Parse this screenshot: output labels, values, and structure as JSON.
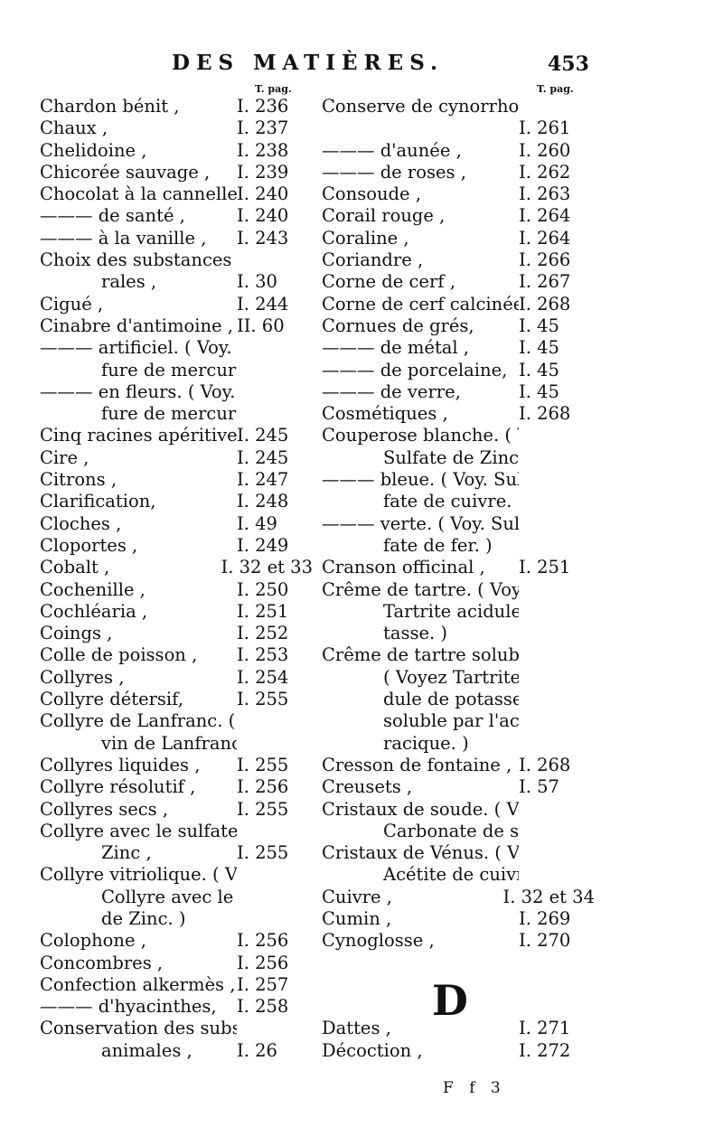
{
  "header": {
    "title": "DES MATIÈRES.",
    "page_number": "453"
  },
  "column_head": "T. pag.",
  "left_column": [
    {
      "text": "Chardon bénit ,",
      "ref": "I. 236"
    },
    {
      "text": "Chaux ,",
      "ref": "I. 237"
    },
    {
      "text": "Chelidoine ,",
      "ref": "I. 238"
    },
    {
      "text": "Chicorée sauvage ,",
      "ref": "I. 239"
    },
    {
      "text": "Chocolat à la cannelle,",
      "ref": "I. 240"
    },
    {
      "text": "——— de santé ,",
      "ref": "I. 240"
    },
    {
      "text": "——— à la vanille ,",
      "ref": "I. 243"
    },
    {
      "text": "Choix des substances miné-",
      "ref": ""
    },
    {
      "text": "rales ,",
      "ref": "I. 30",
      "indent": true
    },
    {
      "text": "Cigué ,",
      "ref": "I. 244"
    },
    {
      "text": "Cinabre d'antimoine ,",
      "ref": "II. 60"
    },
    {
      "text": "——— artificiel. ( Voy. Sul-",
      "ref": ""
    },
    {
      "text": "fure de mercure rouge.)",
      "ref": "",
      "indent": true
    },
    {
      "text": "——— en fleurs. ( Voy. Sul-",
      "ref": ""
    },
    {
      "text": "fure de mercure rouge.)",
      "ref": "",
      "indent": true
    },
    {
      "text": "Cinq racines apéritives,",
      "ref": "I. 245"
    },
    {
      "text": "Cire ,",
      "ref": "I. 245"
    },
    {
      "text": "Citrons ,",
      "ref": "I. 247"
    },
    {
      "text": "Clarification,",
      "ref": "I. 248"
    },
    {
      "text": "Cloches ,",
      "ref": "I. 49"
    },
    {
      "text": "Cloportes ,",
      "ref": "I. 249"
    },
    {
      "text": "Cobalt ,",
      "ref": "I. 32 et 33"
    },
    {
      "text": "Cochenille ,",
      "ref": "I. 250"
    },
    {
      "text": "Cochléaria ,",
      "ref": "I. 251"
    },
    {
      "text": "Coings ,",
      "ref": "I. 252"
    },
    {
      "text": "Colle de poisson ,",
      "ref": "I. 253"
    },
    {
      "text": "Collyres ,",
      "ref": "I. 254"
    },
    {
      "text": "Collyre détersif,",
      "ref": "I. 255"
    },
    {
      "text": "Collyre de Lanfranc. ( Voyez",
      "ref": ""
    },
    {
      "text": "vin de Lanfranc. )",
      "ref": "",
      "indent": true
    },
    {
      "text": "Collyres liquides ,",
      "ref": "I. 255"
    },
    {
      "text": "Collyre résolutif ,",
      "ref": "I. 256"
    },
    {
      "text": "Collyres secs ,",
      "ref": "I. 255"
    },
    {
      "text": "Collyre avec le sulfate de",
      "ref": ""
    },
    {
      "text": "Zinc ,",
      "ref": "I. 255",
      "indent": true
    },
    {
      "text": "Collyre vitriolique. ( Voyez",
      "ref": ""
    },
    {
      "text": "Collyre avec le sulfate",
      "ref": "",
      "indent": true
    },
    {
      "text": "de Zinc. )",
      "ref": "",
      "indent": true
    },
    {
      "text": "Colophone ,",
      "ref": "I. 256"
    },
    {
      "text": "Concombres ,",
      "ref": "I. 256"
    },
    {
      "text": "Confection alkermès ,",
      "ref": "I. 257"
    },
    {
      "text": "——— d'hyacinthes,",
      "ref": "I. 258"
    },
    {
      "text": "Conservation des substances",
      "ref": ""
    },
    {
      "text": "animales ,",
      "ref": "I. 26",
      "indent": true
    }
  ],
  "right_column": [
    {
      "text": "Conserve de cynorrhodons ,",
      "ref": ""
    },
    {
      "text": "",
      "ref": "I. 261"
    },
    {
      "text": "——— d'aunée ,",
      "ref": "I. 260"
    },
    {
      "text": "——— de roses ,",
      "ref": "I. 262"
    },
    {
      "text": "Consoude ,",
      "ref": "I. 263"
    },
    {
      "text": "Corail rouge ,",
      "ref": "I. 264"
    },
    {
      "text": "Coraline ,",
      "ref": "I. 264"
    },
    {
      "text": "Coriandre ,",
      "ref": "I. 266"
    },
    {
      "text": "Corne de cerf ,",
      "ref": "I. 267"
    },
    {
      "text": "Corne de cerf calcinée,",
      "ref": "I. 268"
    },
    {
      "text": "Cornues de grés,",
      "ref": "I. 45"
    },
    {
      "text": "——— de métal ,",
      "ref": "I. 45"
    },
    {
      "text": "——— de porcelaine,",
      "ref": "I. 45"
    },
    {
      "text": "——— de verre,",
      "ref": "I. 45"
    },
    {
      "text": "Cosmétiques ,",
      "ref": "I. 268"
    },
    {
      "text": "Couperose blanche. ( Voyez",
      "ref": ""
    },
    {
      "text": "Sulfate de Zinc. )",
      "ref": "",
      "indent": true
    },
    {
      "text": "——— bleue. ( Voy. Sul-",
      "ref": ""
    },
    {
      "text": "fate de cuivre. )",
      "ref": "",
      "indent": true
    },
    {
      "text": "——— verte. ( Voy. Sul-",
      "ref": ""
    },
    {
      "text": "fate de fer. )",
      "ref": "",
      "indent": true
    },
    {
      "text": "Cranson officinal ,",
      "ref": "I. 251"
    },
    {
      "text": "Crême de tartre. ( Voyez",
      "ref": ""
    },
    {
      "text": "Tartrite acidule de po-",
      "ref": "",
      "indent": true
    },
    {
      "text": "tasse. )",
      "ref": "",
      "indent": true
    },
    {
      "text": "Crême de tartre soluble.",
      "ref": ""
    },
    {
      "text": "( Voyez Tartrite aci-",
      "ref": "",
      "indent": true
    },
    {
      "text": "dule de potasse, rendu",
      "ref": "",
      "indent": true
    },
    {
      "text": "soluble par l'acide bo-",
      "ref": "",
      "indent": true
    },
    {
      "text": "racique. )",
      "ref": "",
      "indent": true
    },
    {
      "text": "Cresson de fontaine ,",
      "ref": "I. 268"
    },
    {
      "text": "Creusets ,",
      "ref": "I. 57"
    },
    {
      "text": "Cristaux de soude. ( Voyez",
      "ref": ""
    },
    {
      "text": "Carbonate de soude. )",
      "ref": "",
      "indent": true
    },
    {
      "text": "Cristaux de Vénus. ( Voyez",
      "ref": ""
    },
    {
      "text": "Acétite de cuivre. )",
      "ref": "",
      "indent": true
    },
    {
      "text": "Cuivre ,",
      "ref": "I. 32 et 34"
    },
    {
      "text": "Cumin ,",
      "ref": "I. 269"
    },
    {
      "text": "Cynoglosse ,",
      "ref": "I. 270"
    },
    {
      "blank": true
    },
    {
      "blank": true
    },
    {
      "blank": true
    },
    {
      "text": "Dattes ,",
      "ref": "I. 271"
    },
    {
      "text": "Décoction ,",
      "ref": "I. 272"
    }
  ],
  "section_letter": "D",
  "footer": {
    "signature": "F f 3"
  }
}
